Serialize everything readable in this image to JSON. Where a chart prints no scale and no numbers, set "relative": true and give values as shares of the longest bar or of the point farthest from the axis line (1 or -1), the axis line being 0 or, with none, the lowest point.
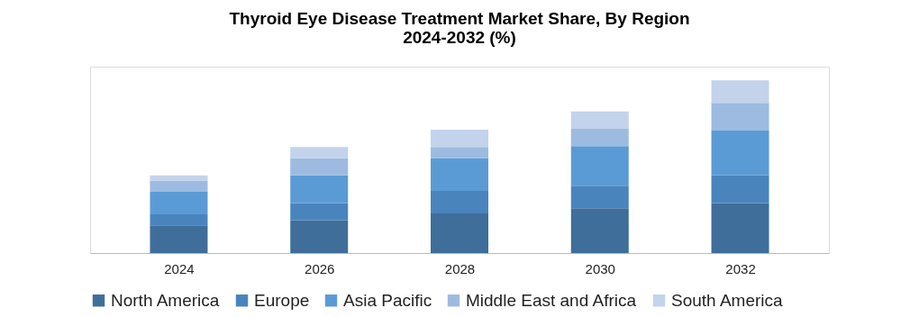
{
  "chart_data": {
    "type": "bar",
    "title": "Thyroid Eye Disease Treatment Market Share, By Region\n2024-2032 (%)",
    "categories": [
      "2024",
      "2026",
      "2028",
      "2030",
      "2032"
    ],
    "stacked": true,
    "relative": true,
    "legend": "bottom",
    "grid": false,
    "series": [
      {
        "name": "North America",
        "color": "#3f6e9b",
        "values": [
          0.16,
          0.19,
          0.23,
          0.26,
          0.29
        ]
      },
      {
        "name": "Europe",
        "color": "#4a84bd",
        "values": [
          0.065,
          0.1,
          0.13,
          0.13,
          0.16
        ]
      },
      {
        "name": "Asia Pacific",
        "color": "#5b9bd5",
        "values": [
          0.13,
          0.16,
          0.19,
          0.23,
          0.26
        ]
      },
      {
        "name": "Middle East and Africa",
        "color": "#9dbbe0",
        "values": [
          0.065,
          0.1,
          0.065,
          0.1,
          0.16
        ]
      },
      {
        "name": "South America",
        "color": "#c3d3ec",
        "values": [
          0.03,
          0.065,
          0.1,
          0.1,
          0.13
        ]
      }
    ]
  }
}
